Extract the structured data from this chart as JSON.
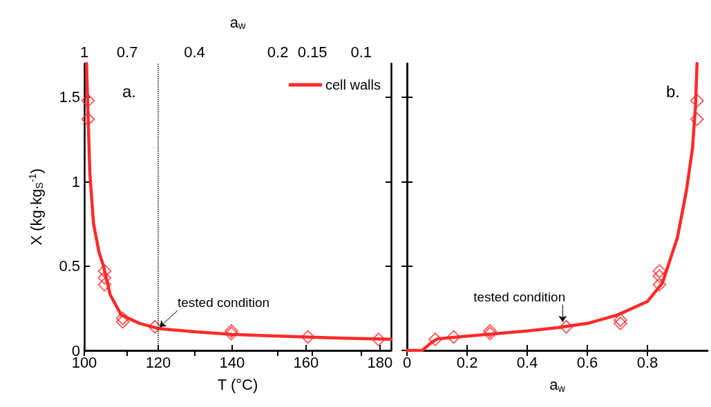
{
  "chart_data": [
    {
      "type": "line",
      "xlabel": "T (°C)",
      "ylabel": "X (kg·kg$_{S}$$^{-1}$)",
      "x2label": "a$_{w}$",
      "xlim": [
        100,
        183
      ],
      "xticks": [
        100,
        120,
        140,
        160,
        180
      ],
      "ylim": [
        0,
        1.7
      ],
      "yticks": [
        0,
        0.5,
        1,
        1.5
      ],
      "x2lim": [
        1,
        0.078
      ],
      "x2ticks": [
        1,
        0.7,
        0.4,
        0.2,
        0.15,
        0.1
      ],
      "log": "x2",
      "series": [
        {
          "name": "cell walls",
          "type": "line",
          "color": "#ff2a2a",
          "x": [
            100.6,
            101,
            101.5,
            102.5,
            104,
            105.2,
            107,
            110,
            115,
            120,
            130,
            140,
            150,
            160,
            170,
            183
          ],
          "values": [
            1.7,
            1.4,
            1.05,
            0.75,
            0.58,
            0.5,
            0.33,
            0.21,
            0.16,
            0.13,
            0.11,
            0.095,
            0.087,
            0.08,
            0.073,
            0.066
          ]
        },
        {
          "type": "scatter",
          "marker": "diamond",
          "color": "#ff2a2a",
          "x": [
            101,
            101,
            105.5,
            105.5,
            105.5,
            110.4,
            110.4,
            119.1,
            139.8,
            139.8,
            160.5,
            179.6
          ],
          "values": [
            1.48,
            1.37,
            0.47,
            0.43,
            0.39,
            0.19,
            0.17,
            0.14,
            0.115,
            0.1,
            0.08,
            0.065
          ]
        }
      ],
      "ref_lines": [
        {
          "axis": "x",
          "value": 120,
          "color": "#000000",
          "line_style": "dotted"
        }
      ],
      "annotations": [
        "a.",
        {
          "text": "tested condition",
          "x": 120,
          "y": 0.13
        }
      ],
      "legend": "top right",
      "grid": false
    },
    {
      "type": "line",
      "xlabel": "a$_{w}$",
      "xlim": [
        0,
        1
      ],
      "xticks": [
        0,
        0.2,
        0.4,
        0.6,
        0.8
      ],
      "ylim": [
        0,
        1.7
      ],
      "yticks": [
        0,
        0.5,
        1,
        1.5
      ],
      "tick_labels": "x",
      "series": [
        {
          "type": "line",
          "color": "#ff2a2a",
          "x": [
            0,
            0.05,
            0.08,
            0.1,
            0.2,
            0.3,
            0.4,
            0.5,
            0.6,
            0.7,
            0.8,
            0.85,
            0.9,
            0.93,
            0.95,
            0.96,
            0.965
          ],
          "values": [
            0,
            0,
            0.045,
            0.068,
            0.085,
            0.1,
            0.115,
            0.135,
            0.16,
            0.21,
            0.29,
            0.4,
            0.67,
            0.95,
            1.2,
            1.45,
            1.7
          ]
        },
        {
          "type": "scatter",
          "marker": "diamond",
          "color": "#ff2a2a",
          "x": [
            0.094,
            0.155,
            0.276,
            0.276,
            0.53,
            0.71,
            0.71,
            0.84,
            0.84,
            0.84,
            0.965,
            0.965
          ],
          "values": [
            0.065,
            0.08,
            0.115,
            0.1,
            0.14,
            0.18,
            0.16,
            0.47,
            0.44,
            0.39,
            1.48,
            1.37
          ]
        }
      ],
      "annotations": [
        "b.",
        {
          "text": "tested condition",
          "x": 0.52,
          "y": 0.14
        }
      ],
      "grid": false
    }
  ]
}
